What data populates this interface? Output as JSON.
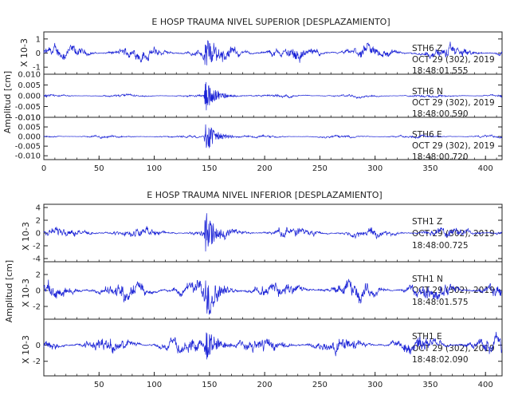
{
  "colors": {
    "trace": "#1a22d6",
    "axis": "#222222",
    "background": "#ffffff"
  },
  "chart_data": [
    {
      "type": "line",
      "title": "E HOSP TRAUMA NIVEL SUPERIOR [DESPLAZAMIENTO]",
      "ylabel": "Amplitud [cm]",
      "xlim": [
        0,
        415
      ],
      "xticks": [
        0,
        50,
        100,
        150,
        200,
        250,
        300,
        350,
        400
      ],
      "xtick_labels": [
        "0",
        "50",
        "100",
        "150",
        "200",
        "250",
        "300",
        "350",
        "400"
      ],
      "event_onset_x": 145,
      "panels": [
        {
          "channel_label": "STH6   Z",
          "date_label": "OCT 29 (302), 2019",
          "time_label": "18:48:01.555",
          "unit_label": "X 10-3",
          "ylim": [
            -1.5,
            1.5
          ],
          "yticks": [
            -1,
            0,
            1
          ],
          "ytick_labels": [
            "-1",
            "0",
            "1"
          ],
          "background_amplitude": 0.5,
          "peak_amplitude": 1.4
        },
        {
          "channel_label": "STH6   N",
          "date_label": "OCT 29 (302), 2019",
          "time_label": "18:48:00.590",
          "unit_label": "",
          "ylim": [
            -0.01,
            0.01
          ],
          "yticks": [
            -0.01,
            -0.005,
            0,
            0.005,
            0.01
          ],
          "ytick_labels": [
            "-0.010",
            "-0.005",
            "0.000",
            "0.005",
            "0.010"
          ],
          "background_amplitude": 0.0007,
          "peak_amplitude": 0.009
        },
        {
          "channel_label": "STH6   E",
          "date_label": "OCT 29 (302), 2019",
          "time_label": "18:48:00.720",
          "unit_label": "",
          "ylim": [
            -0.012,
            0.01
          ],
          "yticks": [
            -0.01,
            -0.005,
            0,
            0.005,
            0.01
          ],
          "ytick_labels": [
            "-0.010",
            "-0.005",
            "0.000",
            "0.005",
            "0.010"
          ],
          "background_amplitude": 0.0007,
          "peak_amplitude": 0.01
        }
      ]
    },
    {
      "type": "line",
      "title": "E HOSP TRAUMA NIVEL INFERIOR [DESPLAZAMIENTO]",
      "ylabel": "Amplitud [cm]",
      "xlim": [
        0,
        415
      ],
      "xticks": [
        50,
        100,
        150,
        200,
        250,
        300,
        350,
        400
      ],
      "xtick_labels": [
        "50",
        "100",
        "150",
        "200",
        "250",
        "300",
        "350",
        "400"
      ],
      "event_onset_x": 145,
      "panels": [
        {
          "channel_label": "STH1   Z",
          "date_label": "OCT 29 (302), 2019",
          "time_label": "18:48:00.725",
          "unit_label": "X 10-3",
          "ylim": [
            -4.5,
            4.5
          ],
          "yticks": [
            -4,
            -2,
            0,
            2,
            4
          ],
          "ytick_labels": [
            "-4",
            "-2",
            "0",
            "2",
            "4"
          ],
          "background_amplitude": 0.8,
          "peak_amplitude": 4.2
        },
        {
          "channel_label": "STH1   N",
          "date_label": "OCT 29 (302), 2019",
          "time_label": "18:48:01.575",
          "unit_label": "X 10-3",
          "ylim": [
            -3.6,
            3.6
          ],
          "yticks": [
            -2,
            0,
            2
          ],
          "ytick_labels": [
            "-2",
            "0",
            "2"
          ],
          "background_amplitude": 1.1,
          "peak_amplitude": 3.1
        },
        {
          "channel_label": "STH1   E",
          "date_label": "OCT 29 (302), 2019",
          "time_label": "18:48:02.090",
          "unit_label": "X 10-3",
          "ylim": [
            -3.8,
            3.2
          ],
          "yticks": [
            -2,
            0
          ],
          "ytick_labels": [
            "-2",
            "0"
          ],
          "background_amplitude": 1.0,
          "peak_amplitude": 3.0
        }
      ]
    }
  ]
}
